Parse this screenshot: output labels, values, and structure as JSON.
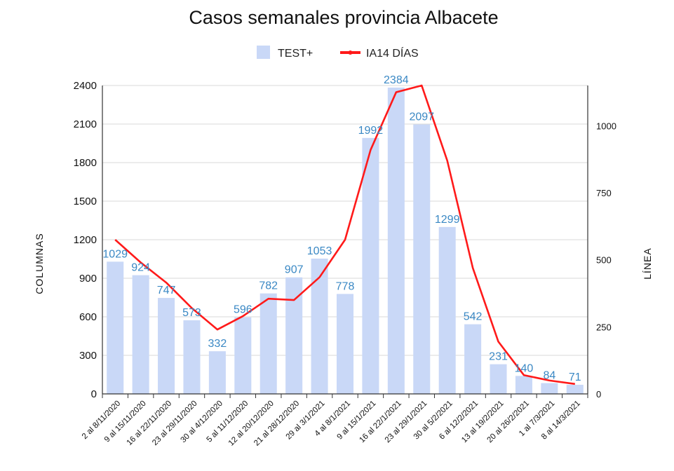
{
  "chart_data": {
    "type": "bar",
    "title": "Casos semanales provincia Albacete",
    "ylabel": "COLUMNAS",
    "y2label": "LÍNEA",
    "ylim": [
      0,
      2400
    ],
    "y2lim": [
      0,
      1150
    ],
    "yticks": [
      0,
      300,
      600,
      900,
      1200,
      1500,
      1800,
      2100,
      2400
    ],
    "y2ticks": [
      0,
      250,
      500,
      750,
      1000
    ],
    "grid": true,
    "legend_position": "top",
    "categories": [
      "2 al 8/11/2020",
      "9 al 15/11/2020",
      "16 al 22/11/2020",
      "23 al 29/11/2020",
      "30 al 4/12/2020",
      "5 al 11/12/2020",
      "12 al 20/12/2020",
      "21 al 28/12/2020",
      "29 al 3/1/2021",
      "4 al 8/1/2021",
      "9 al 15/1/2021",
      "16 al 22/1/2021",
      "23 al 29/1/2021",
      "30 al 5/2/2021",
      "6 al 12/2/2021",
      "13 al 19/2/2021",
      "20 al 26/2/2021",
      "1 al 7/3/2021",
      "8 al 14/3/2021"
    ],
    "series": [
      {
        "name": "TEST+",
        "kind": "bar",
        "axis": "left",
        "color": "#c9d8f7",
        "values": [
          1029,
          924,
          747,
          573,
          332,
          596,
          782,
          907,
          1053,
          778,
          1992,
          2384,
          2097,
          1299,
          542,
          231,
          140,
          84,
          71
        ]
      },
      {
        "name": "IA14 DÍAS",
        "kind": "line",
        "axis": "right",
        "color": "#ff1a1a",
        "values": [
          575,
          490,
          415,
          320,
          240,
          290,
          355,
          350,
          435,
          575,
          910,
          1125,
          1150,
          870,
          470,
          195,
          70,
          50,
          37
        ]
      }
    ]
  }
}
